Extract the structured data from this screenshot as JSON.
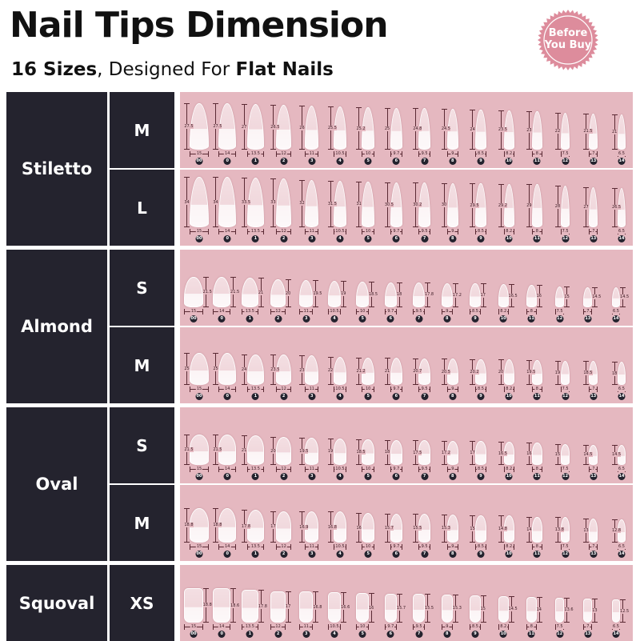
{
  "header": {
    "title": "Nail Tips Dimension",
    "subtitle_count": "16 Sizes",
    "subtitle_mid": ", Designed For ",
    "subtitle_end": "Flat Nails"
  },
  "badge": {
    "line1": "Before",
    "line2": "You Buy",
    "color": "#dd8c9c"
  },
  "colors": {
    "dark": "#24232e",
    "panel": "#e5b8c0"
  },
  "size_labels": [
    "00",
    "0",
    "1",
    "2",
    "3",
    "4",
    "5",
    "6",
    "7",
    "8",
    "9",
    "10",
    "11",
    "12",
    "13",
    "14"
  ],
  "widths_mm": [
    "15",
    "14",
    "13.5",
    "12",
    "11",
    "10.5",
    "10",
    "9.7",
    "9.5",
    "9",
    "8.5",
    "8.2",
    "8",
    "7.5",
    "7",
    "6.5"
  ],
  "shapes": [
    {
      "name": "Stiletto",
      "style": "stiletto",
      "rows": [
        {
          "size": "M",
          "lengths_mm": [
            "27.5",
            "27.5",
            "27",
            "26.5",
            "26",
            "25.5",
            "25.2",
            "25",
            "24.8",
            "24.5",
            "24",
            "23.5",
            "23",
            "22",
            "21.5",
            "21"
          ]
        },
        {
          "size": "L",
          "lengths_mm": [
            "34",
            "34",
            "33.5",
            "33",
            "32",
            "31.5",
            "31",
            "30.5",
            "30.2",
            "30",
            "29.5",
            "29.2",
            "29",
            "28",
            "27",
            "26.5"
          ]
        }
      ]
    },
    {
      "name": "Almond",
      "style": "almond",
      "rows": [
        {
          "size": "S",
          "lengths_mm": [
            "21.5",
            "21.5",
            "21",
            "20",
            "19.5",
            "19",
            "18.5",
            "18",
            "17.8",
            "17.2",
            "17",
            "16.5",
            "16",
            "15",
            "14.5",
            "14.5"
          ]
        },
        {
          "size": "M",
          "lengths_mm": [
            "25",
            "25",
            "24",
            "23.5",
            "23",
            "22",
            "21.2",
            "21",
            "20.7",
            "20.5",
            "20.2",
            "20",
            "19.5",
            "19",
            "18.5",
            "18"
          ]
        }
      ]
    },
    {
      "name": "Oval",
      "style": "oval",
      "rows": [
        {
          "size": "S",
          "lengths_mm": [
            "21.5",
            "21.5",
            "21",
            "20",
            "19.5",
            "19",
            "18.5",
            "18",
            "17.5",
            "17.2",
            "17",
            "16.5",
            "16",
            "15",
            "14.5",
            "14.5"
          ]
        },
        {
          "size": "M",
          "lengths_mm": [
            "18.8",
            "18.8",
            "17.8",
            "17",
            "16.9",
            "16.8",
            "16",
            "15.7",
            "15.5",
            "15.3",
            "15",
            "14.8",
            "14",
            "13.8",
            "13",
            "12.8"
          ]
        }
      ]
    },
    {
      "name": "Squoval",
      "style": "squoval",
      "rows": [
        {
          "size": "XS",
          "lengths_mm": [
            "18.8",
            "18.6",
            "17.8",
            "17",
            "16.8",
            "16.6",
            "16",
            "15.7",
            "15.5",
            "15.3",
            "15",
            "14.5",
            "14",
            "13.6",
            "13",
            "12.5"
          ]
        }
      ]
    }
  ]
}
